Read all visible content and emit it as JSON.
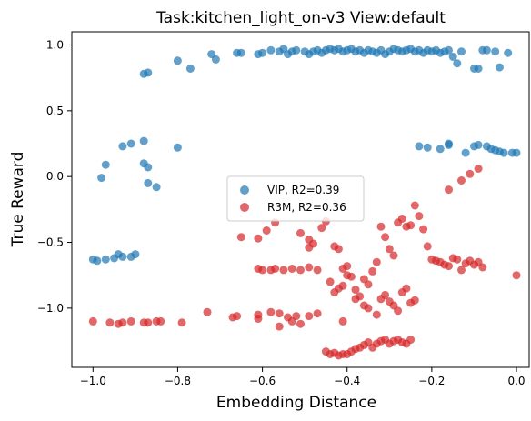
{
  "chart_data": {
    "type": "scatter",
    "title": "Task:kitchen_light_on-v3 View:default",
    "xlabel": "Embedding Distance",
    "ylabel": "True Reward",
    "xlim": [
      -1.05,
      0.03
    ],
    "ylim": [
      -1.45,
      1.1
    ],
    "xticks": [
      -1.0,
      -0.8,
      -0.6,
      -0.4,
      -0.2,
      0.0
    ],
    "xtick_labels": [
      "−1.0",
      "−0.8",
      "−0.6",
      "−0.4",
      "−0.2",
      "0.0"
    ],
    "yticks": [
      -1.0,
      -0.5,
      0.0,
      0.5,
      1.0
    ],
    "ytick_labels": [
      "−1.0",
      "−0.5",
      "0.0",
      "0.5",
      "1.0"
    ],
    "grid": false,
    "legend_position": "center",
    "series": [
      {
        "name": "VIP, R2=0.39",
        "color": "#1f77b4",
        "points": [
          [
            -1.0,
            -0.63
          ],
          [
            -0.99,
            -0.64
          ],
          [
            -0.97,
            -0.63
          ],
          [
            -0.95,
            -0.62
          ],
          [
            -0.94,
            -0.59
          ],
          [
            -0.93,
            -0.61
          ],
          [
            -0.91,
            -0.61
          ],
          [
            -0.9,
            -0.59
          ],
          [
            -0.98,
            -0.01
          ],
          [
            -0.97,
            0.09
          ],
          [
            -0.88,
            0.1
          ],
          [
            -0.87,
            0.07
          ],
          [
            -0.87,
            -0.05
          ],
          [
            -0.85,
            -0.08
          ],
          [
            -0.93,
            0.23
          ],
          [
            -0.91,
            0.25
          ],
          [
            -0.88,
            0.27
          ],
          [
            -0.8,
            0.22
          ],
          [
            -0.88,
            0.78
          ],
          [
            -0.87,
            0.79
          ],
          [
            -0.8,
            0.88
          ],
          [
            -0.77,
            0.82
          ],
          [
            -0.72,
            0.93
          ],
          [
            -0.71,
            0.89
          ],
          [
            -0.66,
            0.94
          ],
          [
            -0.65,
            0.94
          ],
          [
            -0.61,
            0.93
          ],
          [
            -0.6,
            0.94
          ],
          [
            -0.58,
            0.96
          ],
          [
            -0.56,
            0.95
          ],
          [
            -0.55,
            0.97
          ],
          [
            -0.54,
            0.93
          ],
          [
            -0.53,
            0.95
          ],
          [
            -0.52,
            0.96
          ],
          [
            -0.5,
            0.95
          ],
          [
            -0.49,
            0.93
          ],
          [
            -0.48,
            0.95
          ],
          [
            -0.47,
            0.96
          ],
          [
            -0.46,
            0.94
          ],
          [
            -0.45,
            0.96
          ],
          [
            -0.44,
            0.97
          ],
          [
            -0.43,
            0.96
          ],
          [
            -0.42,
            0.97
          ],
          [
            -0.41,
            0.95
          ],
          [
            -0.4,
            0.96
          ],
          [
            -0.39,
            0.97
          ],
          [
            -0.38,
            0.95
          ],
          [
            -0.37,
            0.96
          ],
          [
            -0.36,
            0.94
          ],
          [
            -0.35,
            0.96
          ],
          [
            -0.34,
            0.95
          ],
          [
            -0.33,
            0.94
          ],
          [
            -0.32,
            0.96
          ],
          [
            -0.31,
            0.93
          ],
          [
            -0.3,
            0.95
          ],
          [
            -0.29,
            0.97
          ],
          [
            -0.28,
            0.96
          ],
          [
            -0.27,
            0.95
          ],
          [
            -0.26,
            0.96
          ],
          [
            -0.25,
            0.97
          ],
          [
            -0.24,
            0.95
          ],
          [
            -0.23,
            0.96
          ],
          [
            -0.22,
            0.94
          ],
          [
            -0.21,
            0.96
          ],
          [
            -0.2,
            0.95
          ],
          [
            -0.19,
            0.96
          ],
          [
            -0.18,
            0.94
          ],
          [
            -0.17,
            0.95
          ],
          [
            -0.16,
            0.96
          ],
          [
            -0.15,
            0.91
          ],
          [
            -0.14,
            0.86
          ],
          [
            -0.13,
            0.95
          ],
          [
            -0.1,
            0.82
          ],
          [
            -0.09,
            0.82
          ],
          [
            -0.08,
            0.96
          ],
          [
            -0.07,
            0.96
          ],
          [
            -0.05,
            0.95
          ],
          [
            -0.04,
            0.83
          ],
          [
            -0.02,
            0.94
          ],
          [
            -0.23,
            0.23
          ],
          [
            -0.21,
            0.22
          ],
          [
            -0.18,
            0.21
          ],
          [
            -0.16,
            0.25
          ],
          [
            -0.16,
            0.24
          ],
          [
            -0.12,
            0.18
          ],
          [
            -0.1,
            0.23
          ],
          [
            -0.09,
            0.24
          ],
          [
            -0.07,
            0.23
          ],
          [
            -0.06,
            0.21
          ],
          [
            -0.05,
            0.2
          ],
          [
            -0.04,
            0.19
          ],
          [
            -0.03,
            0.18
          ],
          [
            -0.01,
            0.18
          ],
          [
            0.0,
            0.18
          ]
        ]
      },
      {
        "name": "R3M, R2=0.36",
        "color": "#d62728",
        "points": [
          [
            -1.0,
            -1.1
          ],
          [
            -0.96,
            -1.11
          ],
          [
            -0.94,
            -1.12
          ],
          [
            -0.93,
            -1.11
          ],
          [
            -0.91,
            -1.1
          ],
          [
            -0.88,
            -1.11
          ],
          [
            -0.87,
            -1.11
          ],
          [
            -0.85,
            -1.1
          ],
          [
            -0.84,
            -1.1
          ],
          [
            -0.79,
            -1.11
          ],
          [
            -0.73,
            -1.03
          ],
          [
            -0.67,
            -1.07
          ],
          [
            -0.66,
            -1.06
          ],
          [
            -0.61,
            -1.05
          ],
          [
            -0.61,
            -1.08
          ],
          [
            -0.58,
            -1.03
          ],
          [
            -0.56,
            -1.04
          ],
          [
            -0.56,
            -1.14
          ],
          [
            -0.54,
            -1.07
          ],
          [
            -0.53,
            -1.1
          ],
          [
            -0.52,
            -1.06
          ],
          [
            -0.51,
            -1.12
          ],
          [
            -0.49,
            -1.06
          ],
          [
            -0.47,
            -1.04
          ],
          [
            -0.61,
            -0.7
          ],
          [
            -0.6,
            -0.71
          ],
          [
            -0.58,
            -0.71
          ],
          [
            -0.57,
            -0.7
          ],
          [
            -0.55,
            -0.71
          ],
          [
            -0.53,
            -0.7
          ],
          [
            -0.51,
            -0.71
          ],
          [
            -0.49,
            -0.69
          ],
          [
            -0.47,
            -0.71
          ],
          [
            -0.65,
            -0.46
          ],
          [
            -0.61,
            -0.47
          ],
          [
            -0.59,
            -0.41
          ],
          [
            -0.57,
            -0.35
          ],
          [
            -0.51,
            -0.43
          ],
          [
            -0.49,
            -0.48
          ],
          [
            -0.49,
            -0.54
          ],
          [
            -0.48,
            -0.51
          ],
          [
            -0.46,
            -0.39
          ],
          [
            -0.45,
            -0.34
          ],
          [
            -0.43,
            -0.53
          ],
          [
            -0.42,
            -0.55
          ],
          [
            -0.41,
            -0.7
          ],
          [
            -0.4,
            -0.68
          ],
          [
            -0.39,
            -0.76
          ],
          [
            -0.38,
            -0.86
          ],
          [
            -0.37,
            -0.91
          ],
          [
            -0.36,
            -0.78
          ],
          [
            -0.35,
            -0.82
          ],
          [
            -0.34,
            -0.72
          ],
          [
            -0.33,
            -0.65
          ],
          [
            -0.32,
            -0.38
          ],
          [
            -0.31,
            -0.46
          ],
          [
            -0.3,
            -0.55
          ],
          [
            -0.29,
            -0.6
          ],
          [
            -0.28,
            -0.35
          ],
          [
            -0.27,
            -0.32
          ],
          [
            -0.26,
            -0.38
          ],
          [
            -0.25,
            -0.37
          ],
          [
            -0.24,
            -0.22
          ],
          [
            -0.23,
            -0.3
          ],
          [
            -0.22,
            -0.4
          ],
          [
            -0.21,
            -0.53
          ],
          [
            -0.2,
            -0.63
          ],
          [
            -0.19,
            -0.64
          ],
          [
            -0.18,
            -0.65
          ],
          [
            -0.17,
            -0.67
          ],
          [
            -0.16,
            -0.68
          ],
          [
            -0.15,
            -0.62
          ],
          [
            -0.14,
            -0.63
          ],
          [
            -0.13,
            -0.71
          ],
          [
            -0.12,
            -0.66
          ],
          [
            -0.11,
            -0.64
          ],
          [
            -0.1,
            -0.67
          ],
          [
            -0.09,
            -0.65
          ],
          [
            -0.08,
            -0.69
          ],
          [
            0.0,
            -0.75
          ],
          [
            -0.16,
            -0.1
          ],
          [
            -0.13,
            -0.03
          ],
          [
            -0.11,
            0.02
          ],
          [
            -0.09,
            0.06
          ],
          [
            -0.44,
            -0.8
          ],
          [
            -0.43,
            -0.88
          ],
          [
            -0.42,
            -0.85
          ],
          [
            -0.41,
            -0.83
          ],
          [
            -0.4,
            -0.75
          ],
          [
            -0.38,
            -0.93
          ],
          [
            -0.36,
            -0.98
          ],
          [
            -0.35,
            -1.0
          ],
          [
            -0.33,
            -1.05
          ],
          [
            -0.32,
            -0.93
          ],
          [
            -0.31,
            -0.9
          ],
          [
            -0.3,
            -0.95
          ],
          [
            -0.29,
            -0.98
          ],
          [
            -0.28,
            -1.02
          ],
          [
            -0.27,
            -0.88
          ],
          [
            -0.26,
            -0.85
          ],
          [
            -0.25,
            -0.96
          ],
          [
            -0.24,
            -0.94
          ],
          [
            -0.41,
            -1.1
          ],
          [
            -0.45,
            -1.33
          ],
          [
            -0.44,
            -1.35
          ],
          [
            -0.43,
            -1.34
          ],
          [
            -0.42,
            -1.36
          ],
          [
            -0.41,
            -1.35
          ],
          [
            -0.4,
            -1.35
          ],
          [
            -0.39,
            -1.33
          ],
          [
            -0.38,
            -1.31
          ],
          [
            -0.37,
            -1.3
          ],
          [
            -0.36,
            -1.28
          ],
          [
            -0.35,
            -1.26
          ],
          [
            -0.34,
            -1.3
          ],
          [
            -0.33,
            -1.27
          ],
          [
            -0.32,
            -1.25
          ],
          [
            -0.31,
            -1.24
          ],
          [
            -0.3,
            -1.27
          ],
          [
            -0.29,
            -1.25
          ],
          [
            -0.28,
            -1.24
          ],
          [
            -0.27,
            -1.26
          ],
          [
            -0.26,
            -1.27
          ],
          [
            -0.25,
            -1.24
          ]
        ]
      }
    ]
  }
}
